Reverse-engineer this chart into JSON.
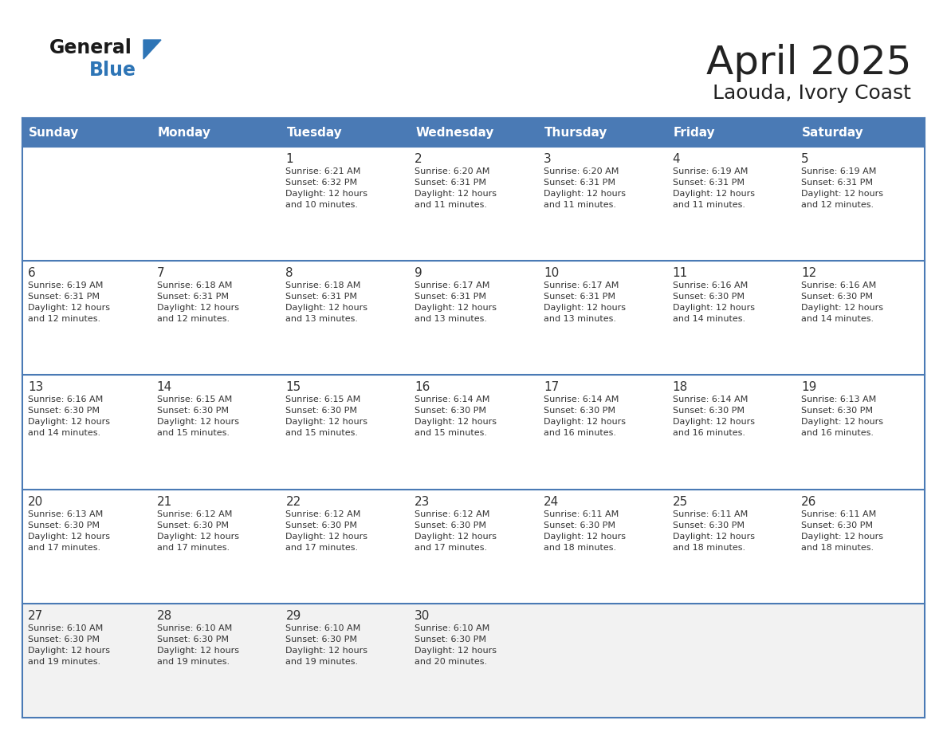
{
  "title": "April 2025",
  "subtitle": "Laouda, Ivory Coast",
  "days_of_week": [
    "Sunday",
    "Monday",
    "Tuesday",
    "Wednesday",
    "Thursday",
    "Friday",
    "Saturday"
  ],
  "header_bg": "#4a7ab5",
  "header_text_color": "#FFFFFF",
  "cell_bg_white": "#FFFFFF",
  "cell_bg_gray": "#F0F0F0",
  "cell_text_color": "#333333",
  "grid_line_color": "#4a7ab5",
  "title_color": "#222222",
  "subtitle_color": "#222222",
  "logo_general_color": "#1a1a1a",
  "logo_blue_color": "#2E75B6",
  "weeks": [
    [
      {
        "day": "",
        "sunrise": "",
        "sunset": "",
        "daylight": ""
      },
      {
        "day": "",
        "sunrise": "",
        "sunset": "",
        "daylight": ""
      },
      {
        "day": "1",
        "sunrise": "Sunrise: 6:21 AM",
        "sunset": "Sunset: 6:32 PM",
        "daylight": "Daylight: 12 hours\nand 10 minutes."
      },
      {
        "day": "2",
        "sunrise": "Sunrise: 6:20 AM",
        "sunset": "Sunset: 6:31 PM",
        "daylight": "Daylight: 12 hours\nand 11 minutes."
      },
      {
        "day": "3",
        "sunrise": "Sunrise: 6:20 AM",
        "sunset": "Sunset: 6:31 PM",
        "daylight": "Daylight: 12 hours\nand 11 minutes."
      },
      {
        "day": "4",
        "sunrise": "Sunrise: 6:19 AM",
        "sunset": "Sunset: 6:31 PM",
        "daylight": "Daylight: 12 hours\nand 11 minutes."
      },
      {
        "day": "5",
        "sunrise": "Sunrise: 6:19 AM",
        "sunset": "Sunset: 6:31 PM",
        "daylight": "Daylight: 12 hours\nand 12 minutes."
      }
    ],
    [
      {
        "day": "6",
        "sunrise": "Sunrise: 6:19 AM",
        "sunset": "Sunset: 6:31 PM",
        "daylight": "Daylight: 12 hours\nand 12 minutes."
      },
      {
        "day": "7",
        "sunrise": "Sunrise: 6:18 AM",
        "sunset": "Sunset: 6:31 PM",
        "daylight": "Daylight: 12 hours\nand 12 minutes."
      },
      {
        "day": "8",
        "sunrise": "Sunrise: 6:18 AM",
        "sunset": "Sunset: 6:31 PM",
        "daylight": "Daylight: 12 hours\nand 13 minutes."
      },
      {
        "day": "9",
        "sunrise": "Sunrise: 6:17 AM",
        "sunset": "Sunset: 6:31 PM",
        "daylight": "Daylight: 12 hours\nand 13 minutes."
      },
      {
        "day": "10",
        "sunrise": "Sunrise: 6:17 AM",
        "sunset": "Sunset: 6:31 PM",
        "daylight": "Daylight: 12 hours\nand 13 minutes."
      },
      {
        "day": "11",
        "sunrise": "Sunrise: 6:16 AM",
        "sunset": "Sunset: 6:30 PM",
        "daylight": "Daylight: 12 hours\nand 14 minutes."
      },
      {
        "day": "12",
        "sunrise": "Sunrise: 6:16 AM",
        "sunset": "Sunset: 6:30 PM",
        "daylight": "Daylight: 12 hours\nand 14 minutes."
      }
    ],
    [
      {
        "day": "13",
        "sunrise": "Sunrise: 6:16 AM",
        "sunset": "Sunset: 6:30 PM",
        "daylight": "Daylight: 12 hours\nand 14 minutes."
      },
      {
        "day": "14",
        "sunrise": "Sunrise: 6:15 AM",
        "sunset": "Sunset: 6:30 PM",
        "daylight": "Daylight: 12 hours\nand 15 minutes."
      },
      {
        "day": "15",
        "sunrise": "Sunrise: 6:15 AM",
        "sunset": "Sunset: 6:30 PM",
        "daylight": "Daylight: 12 hours\nand 15 minutes."
      },
      {
        "day": "16",
        "sunrise": "Sunrise: 6:14 AM",
        "sunset": "Sunset: 6:30 PM",
        "daylight": "Daylight: 12 hours\nand 15 minutes."
      },
      {
        "day": "17",
        "sunrise": "Sunrise: 6:14 AM",
        "sunset": "Sunset: 6:30 PM",
        "daylight": "Daylight: 12 hours\nand 16 minutes."
      },
      {
        "day": "18",
        "sunrise": "Sunrise: 6:14 AM",
        "sunset": "Sunset: 6:30 PM",
        "daylight": "Daylight: 12 hours\nand 16 minutes."
      },
      {
        "day": "19",
        "sunrise": "Sunrise: 6:13 AM",
        "sunset": "Sunset: 6:30 PM",
        "daylight": "Daylight: 12 hours\nand 16 minutes."
      }
    ],
    [
      {
        "day": "20",
        "sunrise": "Sunrise: 6:13 AM",
        "sunset": "Sunset: 6:30 PM",
        "daylight": "Daylight: 12 hours\nand 17 minutes."
      },
      {
        "day": "21",
        "sunrise": "Sunrise: 6:12 AM",
        "sunset": "Sunset: 6:30 PM",
        "daylight": "Daylight: 12 hours\nand 17 minutes."
      },
      {
        "day": "22",
        "sunrise": "Sunrise: 6:12 AM",
        "sunset": "Sunset: 6:30 PM",
        "daylight": "Daylight: 12 hours\nand 17 minutes."
      },
      {
        "day": "23",
        "sunrise": "Sunrise: 6:12 AM",
        "sunset": "Sunset: 6:30 PM",
        "daylight": "Daylight: 12 hours\nand 17 minutes."
      },
      {
        "day": "24",
        "sunrise": "Sunrise: 6:11 AM",
        "sunset": "Sunset: 6:30 PM",
        "daylight": "Daylight: 12 hours\nand 18 minutes."
      },
      {
        "day": "25",
        "sunrise": "Sunrise: 6:11 AM",
        "sunset": "Sunset: 6:30 PM",
        "daylight": "Daylight: 12 hours\nand 18 minutes."
      },
      {
        "day": "26",
        "sunrise": "Sunrise: 6:11 AM",
        "sunset": "Sunset: 6:30 PM",
        "daylight": "Daylight: 12 hours\nand 18 minutes."
      }
    ],
    [
      {
        "day": "27",
        "sunrise": "Sunrise: 6:10 AM",
        "sunset": "Sunset: 6:30 PM",
        "daylight": "Daylight: 12 hours\nand 19 minutes."
      },
      {
        "day": "28",
        "sunrise": "Sunrise: 6:10 AM",
        "sunset": "Sunset: 6:30 PM",
        "daylight": "Daylight: 12 hours\nand 19 minutes."
      },
      {
        "day": "29",
        "sunrise": "Sunrise: 6:10 AM",
        "sunset": "Sunset: 6:30 PM",
        "daylight": "Daylight: 12 hours\nand 19 minutes."
      },
      {
        "day": "30",
        "sunrise": "Sunrise: 6:10 AM",
        "sunset": "Sunset: 6:30 PM",
        "daylight": "Daylight: 12 hours\nand 20 minutes."
      },
      {
        "day": "",
        "sunrise": "",
        "sunset": "",
        "daylight": ""
      },
      {
        "day": "",
        "sunrise": "",
        "sunset": "",
        "daylight": ""
      },
      {
        "day": "",
        "sunrise": "",
        "sunset": "",
        "daylight": ""
      }
    ]
  ],
  "row_backgrounds": [
    "#FFFFFF",
    "#FFFFFF",
    "#FFFFFF",
    "#FFFFFF",
    "#F2F2F2"
  ]
}
